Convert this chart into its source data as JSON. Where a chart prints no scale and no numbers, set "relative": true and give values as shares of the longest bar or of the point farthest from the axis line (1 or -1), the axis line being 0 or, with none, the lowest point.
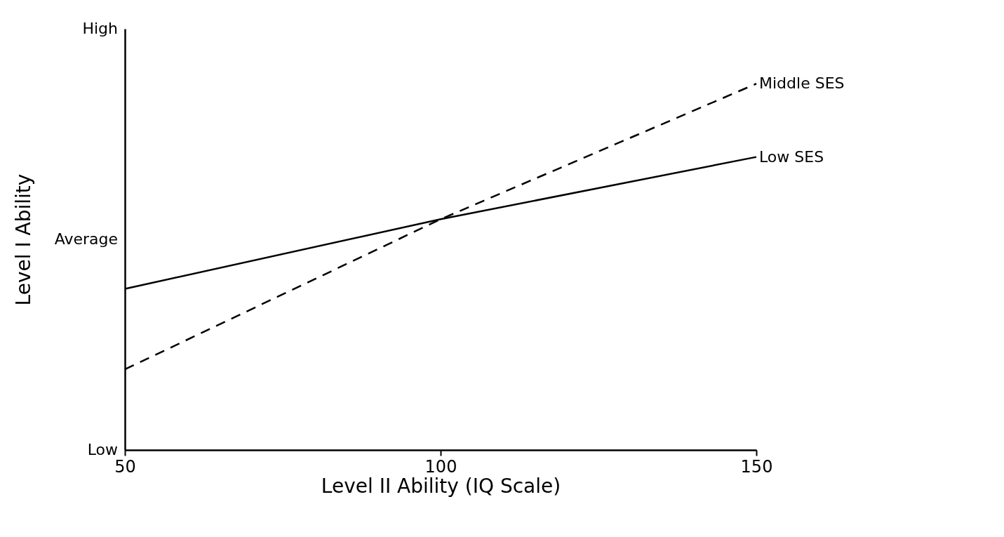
{
  "chart_data": {
    "type": "line",
    "xlabel": "Level II Ability (IQ Scale)",
    "ylabel": "Level I Ability",
    "x": [
      50,
      100,
      150
    ],
    "series": [
      {
        "name": "Middle SES",
        "color": "#000000",
        "line_style": "dashed",
        "values": [
          0.22,
          0.63,
          1
        ]
      },
      {
        "name": "Low SES",
        "color": "#000000",
        "line_style": "solid",
        "values": [
          0.44,
          0.63,
          0.8
        ]
      }
    ],
    "relative": true,
    "annotations": [
      "Low",
      "Average",
      "High"
    ],
    "xlim": [
      50,
      150
    ],
    "xticks": [
      50,
      100,
      150
    ],
    "grid": false,
    "legend": false,
    "marker": "none"
  }
}
